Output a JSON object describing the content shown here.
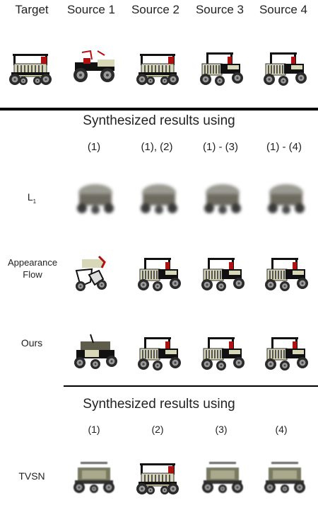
{
  "source_headers": [
    "Target",
    "Source 1",
    "Source 2",
    "Source 3",
    "Source 4"
  ],
  "section1": {
    "title": "Synthesized results using",
    "columns": [
      "(1)",
      "(1), (2)",
      "(1) - (3)",
      "(1) - (4)"
    ],
    "rows": [
      {
        "label": "L",
        "subscript": "1",
        "style": "blurry"
      },
      {
        "label": "Appearance Flow",
        "style": "flow"
      },
      {
        "label": "Ours",
        "style": "ours"
      }
    ]
  },
  "section2": {
    "title": "Synthesized results using",
    "columns": [
      "(1)",
      "(2)",
      "(3)",
      "(4)"
    ],
    "rows": [
      {
        "label": "TVSN",
        "style": "tvsn"
      }
    ]
  },
  "colors": {
    "body_cream": "#d8d7b8",
    "frame_black": "#111111",
    "accent_red": "#b01010",
    "blur_gray": "#9a9a92",
    "divider": "#000000"
  }
}
